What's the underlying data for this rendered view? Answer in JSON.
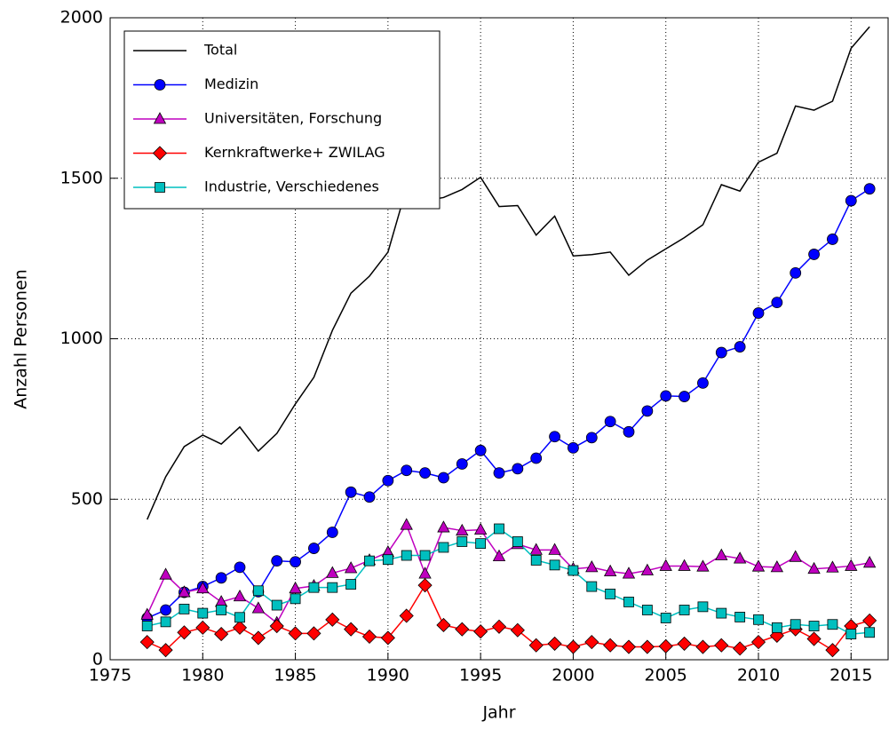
{
  "chart_data": {
    "type": "line",
    "x_label": "Jahr",
    "y_label": "Anzahl Personen",
    "x": [
      1977,
      1978,
      1979,
      1980,
      1981,
      1982,
      1983,
      1984,
      1985,
      1986,
      1987,
      1988,
      1989,
      1990,
      1991,
      1992,
      1993,
      1994,
      1995,
      1996,
      1997,
      1998,
      1999,
      2000,
      2001,
      2002,
      2003,
      2004,
      2005,
      2006,
      2007,
      2008,
      2009,
      2010,
      2011,
      2012,
      2013,
      2014,
      2015,
      2016
    ],
    "series": [
      {
        "name": "Total",
        "color": "#000000",
        "marker": "none",
        "values": [
          437,
          570,
          664,
          700,
          672,
          725,
          650,
          705,
          797,
          880,
          1026,
          1142,
          1195,
          1270,
          1470,
          1430,
          1440,
          1465,
          1503,
          1412,
          1415,
          1323,
          1382,
          1258,
          1262,
          1270,
          1198,
          1245,
          1280,
          1315,
          1355,
          1480,
          1460,
          1550,
          1578,
          1725,
          1712,
          1740,
          1905,
          1972
        ]
      },
      {
        "name": "Medizin",
        "color": "#0000ff",
        "marker": "circle",
        "values": [
          130,
          155,
          210,
          228,
          255,
          288,
          212,
          308,
          305,
          347,
          397,
          522,
          507,
          558,
          590,
          582,
          567,
          610,
          652,
          582,
          595,
          628,
          695,
          660,
          692,
          742,
          710,
          775,
          822,
          820,
          862,
          957,
          975,
          1080,
          1113,
          1205,
          1263,
          1310,
          1430,
          1467
        ]
      },
      {
        "name": "Universitäten, Forschung",
        "color": "#bf00bf",
        "marker": "triangle",
        "values": [
          140,
          265,
          210,
          222,
          180,
          197,
          160,
          115,
          222,
          230,
          270,
          285,
          310,
          335,
          420,
          268,
          412,
          402,
          405,
          322,
          360,
          342,
          342,
          283,
          288,
          275,
          268,
          278,
          292,
          292,
          290,
          325,
          315,
          290,
          288,
          320,
          283,
          287,
          292,
          302
        ]
      },
      {
        "name": "Kernkraftwerke+ ZWILAG",
        "color": "#ff0000",
        "marker": "diamond",
        "values": [
          55,
          30,
          85,
          100,
          80,
          100,
          68,
          105,
          82,
          82,
          125,
          95,
          72,
          68,
          137,
          232,
          108,
          95,
          88,
          103,
          92,
          45,
          50,
          40,
          55,
          45,
          40,
          40,
          42,
          50,
          40,
          45,
          35,
          55,
          75,
          95,
          65,
          30,
          105,
          122
        ]
      },
      {
        "name": "Industrie, Verschiedenes",
        "color": "#00bfbf",
        "marker": "square",
        "values": [
          105,
          118,
          158,
          145,
          155,
          132,
          215,
          170,
          190,
          225,
          225,
          235,
          308,
          312,
          325,
          325,
          350,
          368,
          362,
          408,
          368,
          310,
          295,
          278,
          228,
          205,
          180,
          155,
          130,
          155,
          165,
          145,
          133,
          125,
          100,
          110,
          105,
          110,
          80,
          85
        ]
      }
    ],
    "xlim": [
      1975,
      2017
    ],
    "xticks": [
      1975,
      1980,
      1985,
      1990,
      1995,
      2000,
      2005,
      2010,
      2015
    ],
    "ylim": [
      0,
      2000
    ],
    "yticks": [
      0,
      500,
      1000,
      1500,
      2000
    ],
    "grid": true,
    "legend": "upper left"
  }
}
